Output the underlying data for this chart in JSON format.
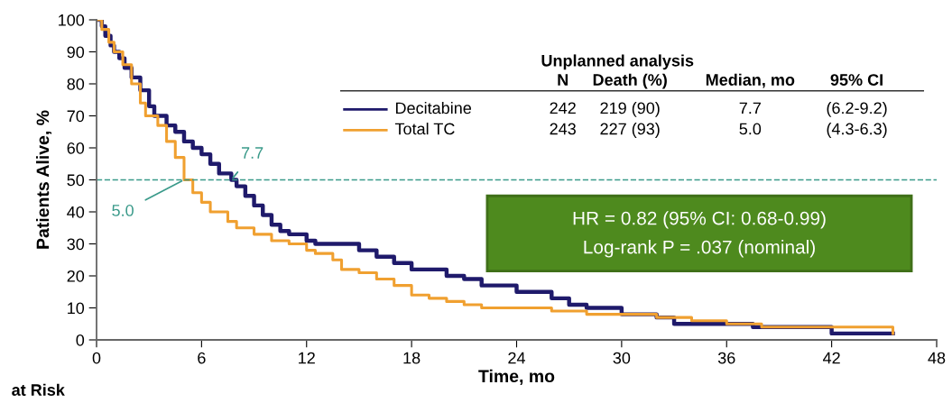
{
  "chart_data": {
    "type": "step",
    "xlabel": "Time, mo",
    "ylabel": "Patients Alive, %",
    "xlim": [
      0,
      48
    ],
    "xticks": [
      0,
      6,
      12,
      18,
      24,
      30,
      36,
      42,
      48
    ],
    "ylim": [
      0,
      100
    ],
    "yticks": [
      0,
      10,
      20,
      30,
      40,
      50,
      60,
      70,
      80,
      90,
      100
    ],
    "grid": false,
    "legend": "top",
    "series": [
      {
        "name": "Decitabine",
        "color": "#1f1a6b",
        "x": [
          0,
          0.3,
          0.5,
          0.8,
          1,
          1.3,
          1.6,
          2,
          2.5,
          3,
          3.3,
          4,
          4.5,
          5,
          5.5,
          6,
          6.5,
          7,
          7.7,
          8,
          8.5,
          9,
          9.5,
          10,
          10.5,
          11,
          12,
          12.5,
          14,
          15,
          16,
          17,
          18,
          20,
          21,
          22,
          24,
          26,
          27,
          28,
          30,
          32,
          33,
          37.5,
          42,
          45.5
        ],
        "values": [
          100,
          98,
          95,
          92,
          90,
          88,
          85,
          82,
          78,
          73,
          70,
          67,
          65,
          62,
          60,
          58,
          55,
          52,
          50,
          48,
          45,
          42,
          39,
          36,
          34,
          33,
          31,
          30,
          30,
          28,
          26,
          24,
          22,
          20,
          19,
          17,
          15,
          13,
          11,
          10,
          8,
          7,
          5,
          4,
          2,
          2
        ]
      },
      {
        "name": "Total TC",
        "color": "#f0a030",
        "x": [
          0,
          0.3,
          0.7,
          1,
          1.5,
          2,
          2.5,
          2.8,
          3.5,
          4,
          4.5,
          5,
          5.5,
          6,
          6.5,
          7.5,
          8,
          9,
          10,
          11,
          12,
          12.5,
          13.5,
          14,
          15,
          16,
          17,
          18,
          19,
          20,
          21,
          22,
          24,
          26,
          28,
          30,
          32,
          34,
          36,
          38,
          42,
          45.5
        ],
        "values": [
          100,
          97,
          93,
          90,
          86,
          80,
          74,
          70,
          67,
          62,
          57,
          50,
          46,
          43,
          40,
          37,
          35,
          33,
          31,
          30,
          28,
          27,
          25,
          22,
          21,
          19,
          17,
          14,
          13,
          12,
          11,
          10,
          10,
          9,
          8,
          8,
          7,
          6,
          5,
          4,
          4,
          2
        ]
      }
    ],
    "ref_lines": [
      {
        "axis": "y",
        "value": 50,
        "color": "#3a9a8a",
        "line_style": "dashed"
      }
    ],
    "annotations": [
      {
        "text": "7.7",
        "x": 7.7,
        "y": 50
      },
      {
        "text": "5.0",
        "x": 5.0,
        "y": 50
      },
      "Unplanned analysis",
      "N",
      "Death (%)",
      "Median, mo",
      "95% CI",
      "242",
      "219 (90)",
      "7.7",
      "(6.2-9.2)",
      "243",
      "227 (93)",
      "5.0",
      "(4.3-6.3)",
      "HR = 0.82 (95% CI: 0.68-0.99)",
      "Log-rank P = .037 (nominal)",
      "at Risk"
    ]
  }
}
